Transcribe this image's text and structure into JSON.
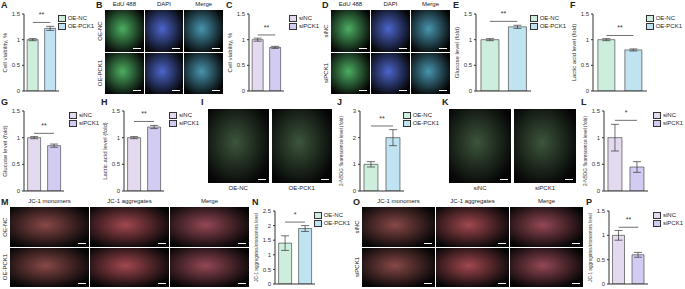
{
  "chart_data": [
    {
      "type": "bar",
      "title": "A",
      "y_label": "Cell viability, %",
      "categories": [
        "OE-NC",
        "OE-PCK1"
      ],
      "values": [
        1.0,
        1.22
      ],
      "errors": [
        0.02,
        0.04
      ],
      "colors": [
        "#cdeedd",
        "#bfe3f0"
      ],
      "ylim": [
        0,
        1.5
      ],
      "yticks": [
        0,
        0.5,
        1,
        1.5
      ],
      "annotation": "**",
      "legend": "top right",
      "tick_labels": "y"
    },
    {
      "type": "bar",
      "title": "C",
      "y_label": "Cell viability, %",
      "categories": [
        "siNC",
        "siPCK1"
      ],
      "values": [
        1.0,
        0.85
      ],
      "errors": [
        0.03,
        0.02
      ],
      "colors": [
        "#e4daf0",
        "#d2ccf2"
      ],
      "ylim": [
        0,
        1.5
      ],
      "yticks": [
        0,
        0.5,
        1,
        1.5
      ],
      "annotation": "**",
      "legend": "top right",
      "tick_labels": "y"
    },
    {
      "type": "bar",
      "title": "E",
      "y_label": "Glucose level (fold)",
      "categories": [
        "OE-NC",
        "OE-PCK1"
      ],
      "values": [
        1.0,
        1.25
      ],
      "errors": [
        0.02,
        0.03
      ],
      "colors": [
        "#cdeedd",
        "#bfe3f0"
      ],
      "ylim": [
        0,
        1.5
      ],
      "yticks": [
        0,
        0.5,
        1,
        1.5
      ],
      "annotation": "**",
      "legend": "top right",
      "tick_labels": "y"
    },
    {
      "type": "bar",
      "title": "F",
      "y_label": "Lactic acid level (fold)",
      "categories": [
        "OE-NC",
        "OE-PCK1"
      ],
      "values": [
        1.0,
        0.8
      ],
      "errors": [
        0.02,
        0.02
      ],
      "colors": [
        "#cdeedd",
        "#bfe3f0"
      ],
      "ylim": [
        0,
        1.5
      ],
      "yticks": [
        0,
        0.5,
        1,
        1.5
      ],
      "annotation": "**",
      "legend": "top right",
      "tick_labels": "y"
    },
    {
      "type": "bar",
      "title": "G",
      "y_label": "Glucose level (fold)",
      "categories": [
        "siNC",
        "siPCK1"
      ],
      "values": [
        1.0,
        0.85
      ],
      "errors": [
        0.02,
        0.03
      ],
      "colors": [
        "#e4daf0",
        "#d2ccf2"
      ],
      "ylim": [
        0,
        1.5
      ],
      "yticks": [
        0,
        0.5,
        1,
        1.5
      ],
      "annotation": "**",
      "legend": "top right",
      "tick_labels": "y"
    },
    {
      "type": "bar",
      "title": "H",
      "y_label": "Lactic acid level (fold)",
      "categories": [
        "siNC",
        "siPCK1"
      ],
      "values": [
        1.0,
        1.2
      ],
      "errors": [
        0.02,
        0.03
      ],
      "colors": [
        "#e4daf0",
        "#d2ccf2"
      ],
      "ylim": [
        0,
        1.5
      ],
      "yticks": [
        0,
        0.5,
        1,
        1.5
      ],
      "annotation": "**",
      "legend": "top right",
      "tick_labels": "y"
    },
    {
      "type": "bar",
      "title": "J",
      "y_label": "2-NBDG fluorescence level (fold)",
      "categories": [
        "OE-NC",
        "OE-PCK1"
      ],
      "values": [
        1.0,
        2.0
      ],
      "errors": [
        0.1,
        0.3
      ],
      "colors": [
        "#cdeedd",
        "#bfe3f0"
      ],
      "ylim": [
        0,
        3
      ],
      "yticks": [
        0,
        1,
        2,
        3
      ],
      "annotation": "**",
      "legend": "top right",
      "tick_labels": "y"
    },
    {
      "type": "bar",
      "title": "L",
      "y_label": "2-NBDG fluorescence level (fold)",
      "categories": [
        "siNC",
        "siPCK1"
      ],
      "values": [
        1.0,
        0.45
      ],
      "errors": [
        0.25,
        0.1
      ],
      "colors": [
        "#e4daf0",
        "#d2ccf2"
      ],
      "ylim": [
        0,
        1.5
      ],
      "yticks": [
        0,
        0.5,
        1,
        1.5
      ],
      "annotation": "*",
      "legend": "top right",
      "tick_labels": "y"
    },
    {
      "type": "bar",
      "title": "N",
      "y_label": "JC-1 aggregates/monomers level",
      "categories": [
        "OE-NC",
        "OE-PCK1"
      ],
      "values": [
        1.4,
        1.9
      ],
      "errors": [
        0.25,
        0.1
      ],
      "colors": [
        "#cdeedd",
        "#bfe3f0"
      ],
      "ylim": [
        0,
        2.5
      ],
      "yticks": [
        0,
        0.5,
        1,
        1.5,
        2,
        2.5
      ],
      "annotation": "*",
      "legend": "top right",
      "tick_labels": "y"
    },
    {
      "type": "bar",
      "title": "P",
      "y_label": "JC-1 aggregates/monomers level",
      "categories": [
        "siNC",
        "siPCK1"
      ],
      "values": [
        1.0,
        0.6
      ],
      "errors": [
        0.1,
        0.05
      ],
      "colors": [
        "#e4daf0",
        "#d2ccf2"
      ],
      "ylim": [
        0,
        1.5
      ],
      "yticks": [
        0,
        0.5,
        1,
        1.5
      ],
      "annotation": "**",
      "legend": "top right",
      "tick_labels": "y"
    }
  ],
  "images": [
    {
      "title": "B",
      "columns": [
        "EdU 488",
        "DAPI",
        "Merge"
      ],
      "rows": [
        "OE-NC",
        "OE-PCK1"
      ],
      "colors": [
        "#1f9a3a",
        "#1f3fbf",
        "#1a7a9a"
      ]
    },
    {
      "title": "D",
      "columns": [
        "EdU 488",
        "DAPI",
        "Merge"
      ],
      "rows": [
        "siNC",
        "siPCK1"
      ],
      "colors": [
        "#1f9a3a",
        "#1f3fbf",
        "#1a7a9a"
      ]
    },
    {
      "title": "I",
      "labels": [
        "OE-NC",
        "OE-PCK1"
      ],
      "colors": [
        "#0c2a0c",
        "#0c2a0c"
      ]
    },
    {
      "title": "K",
      "labels": [
        "siNC",
        "siPCK1"
      ],
      "colors": [
        "#0c2a0c",
        "#0c2a0c"
      ]
    },
    {
      "title": "M",
      "columns": [
        "JC-1 monomers",
        "JC-1 aggregates",
        "Merge"
      ],
      "rows": [
        "OE-NC",
        "OE-PCK1"
      ],
      "colors": [
        "#6a1a1a",
        "#8a1a24",
        "#7a1a2a"
      ]
    },
    {
      "title": "O",
      "columns": [
        "JC-1 monomers",
        "JC-1 aggregates",
        "Merge"
      ],
      "rows": [
        "siNC",
        "siPCK1"
      ],
      "colors": [
        "#6a1a1a",
        "#8a1a24",
        "#7a1a2a"
      ]
    }
  ]
}
